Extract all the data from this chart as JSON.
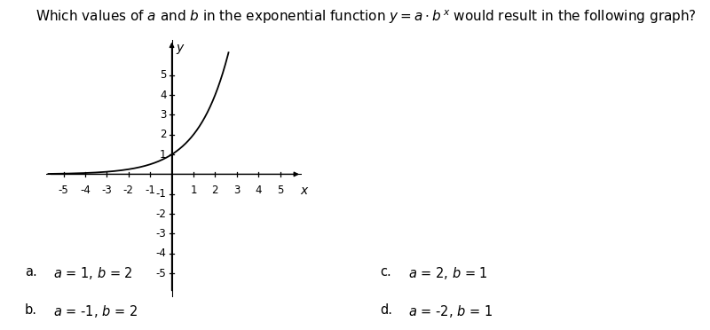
{
  "xlim": [
    -5.8,
    6.0
  ],
  "ylim": [
    -6.2,
    6.8
  ],
  "xticks": [
    -5,
    -4,
    -3,
    -2,
    -1,
    1,
    2,
    3,
    4,
    5
  ],
  "yticks": [
    -5,
    -4,
    -3,
    -2,
    -1,
    1,
    2,
    3,
    4,
    5
  ],
  "curve_color": "#000000",
  "curve_a": 1,
  "curve_b": 2,
  "x_label": "x",
  "y_label": "y",
  "answers": [
    {
      "label": "a.",
      "text_a": "a",
      "eq1": " = 1, ",
      "text_b": "b",
      "eq2": " = 2"
    },
    {
      "label": "b.",
      "text_a": "a",
      "eq1": " = -1, ",
      "text_b": "b",
      "eq2": " = 2"
    },
    {
      "label": "c.",
      "text_a": "a",
      "eq1": " = 2, ",
      "text_b": "b",
      "eq2": " = 1"
    },
    {
      "label": "d.",
      "text_a": "a",
      "eq1": " = -2, ",
      "text_b": "b",
      "eq2": " = 1"
    }
  ],
  "bg_color": "#ffffff",
  "text_color": "#000000",
  "title_fontsize": 11,
  "answer_fontsize": 10.5,
  "tick_fontsize": 8.5,
  "axis_label_fontsize": 10
}
